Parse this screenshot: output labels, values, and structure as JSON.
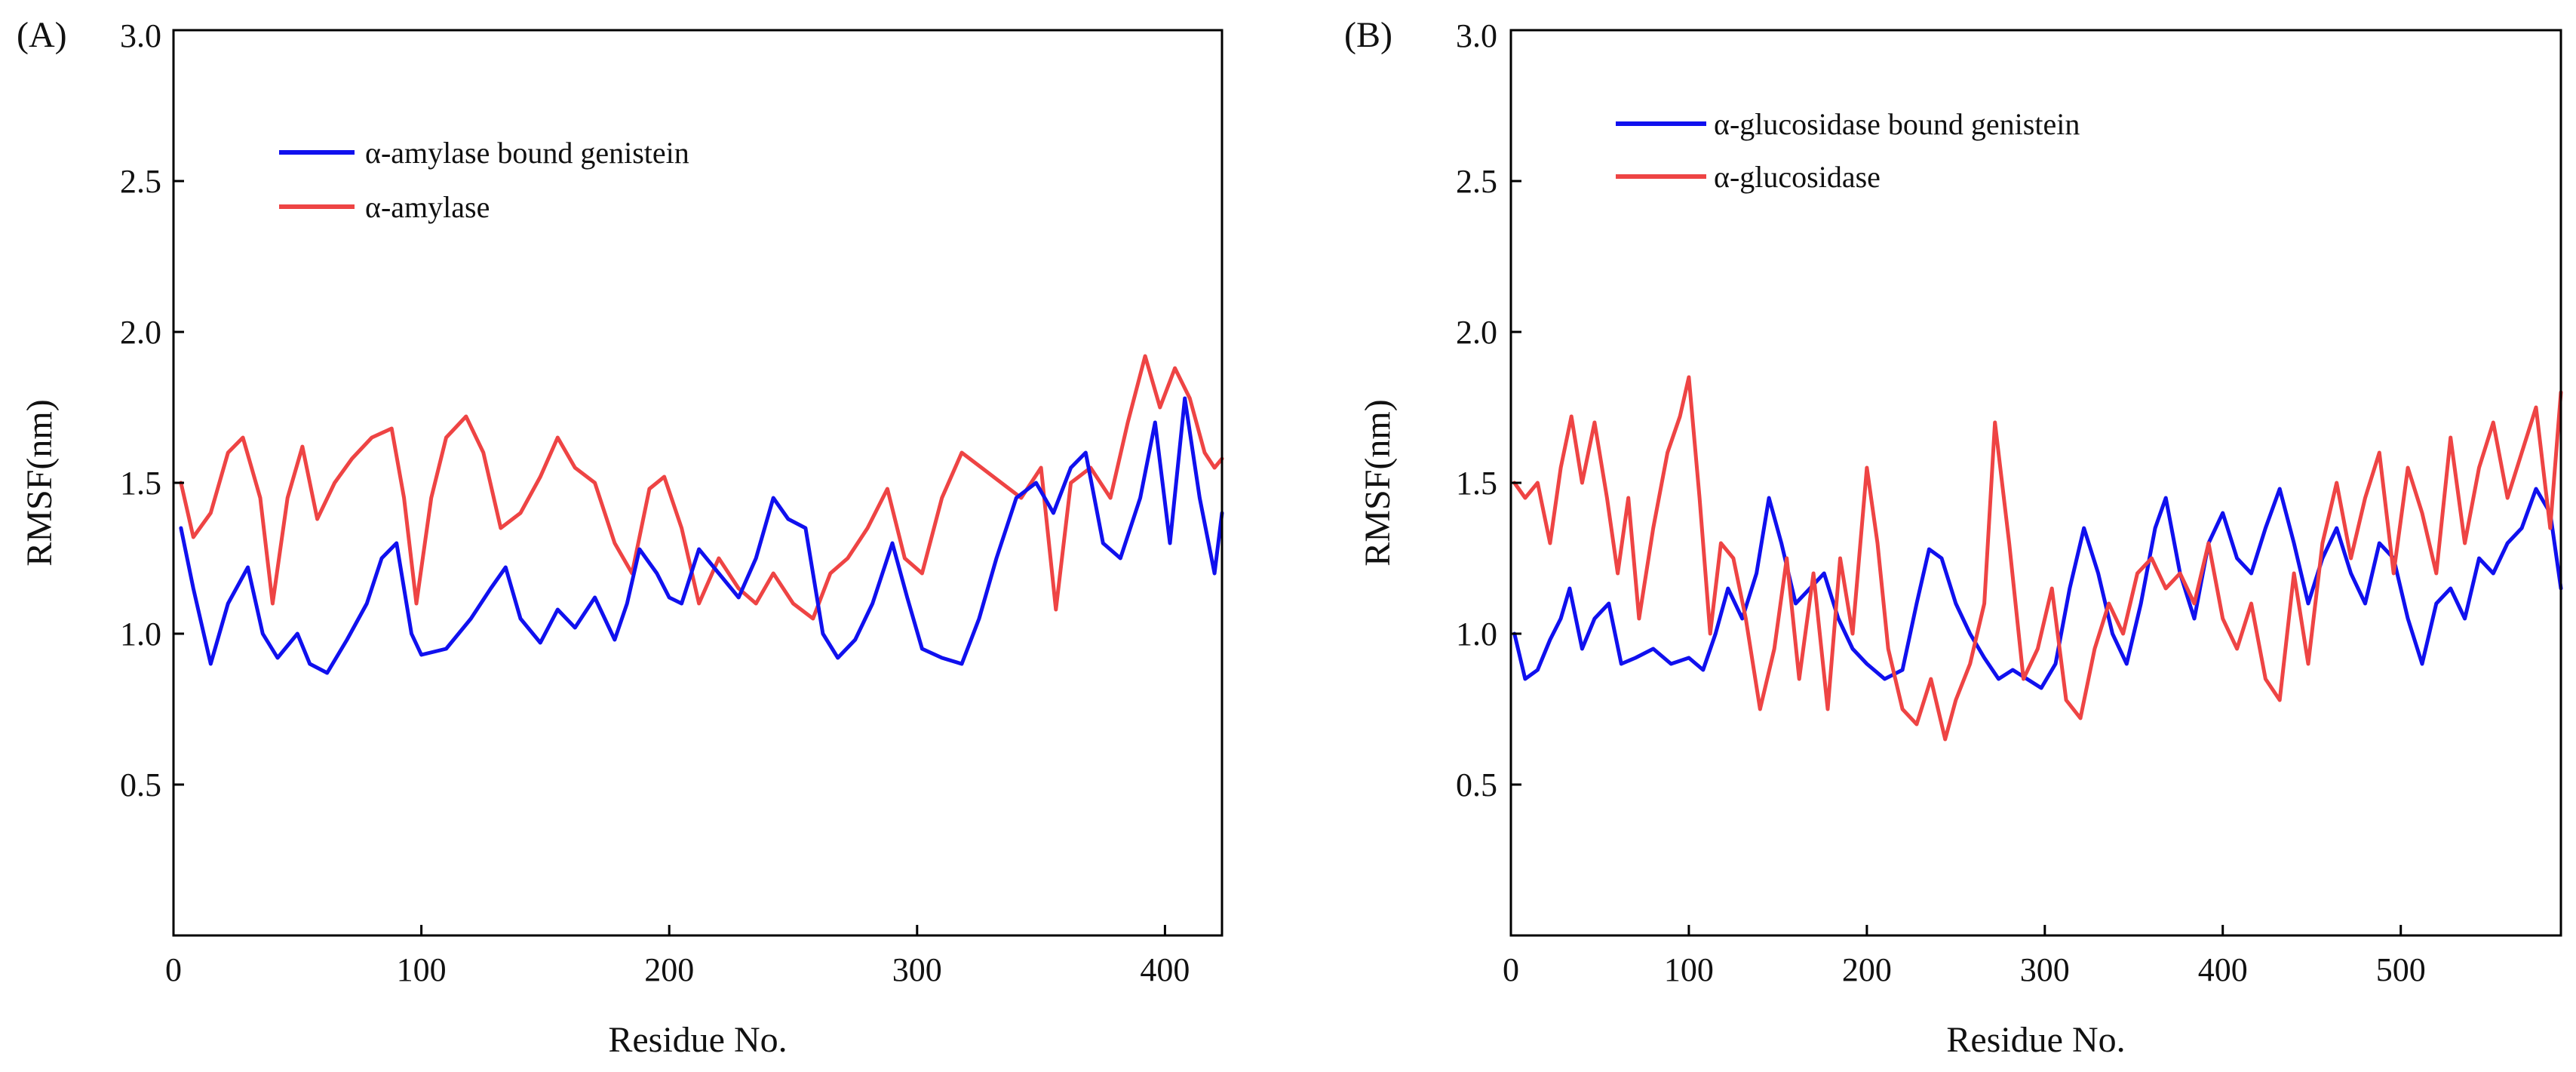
{
  "chart_data": [
    {
      "type": "line",
      "panel_label": "(A)",
      "title": "",
      "xlabel": "Residue No.",
      "ylabel": "RMSF(nm)",
      "xlim": [
        0,
        423
      ],
      "ylim": [
        0,
        3.0
      ],
      "x_ticks": [
        "0",
        "100",
        "200",
        "300",
        "400"
      ],
      "y_ticks": [
        "0.5",
        "1.0",
        "1.5",
        "2.0",
        "2.5",
        "3.0"
      ],
      "grid": false,
      "legend_position": "top-left",
      "series": [
        {
          "name": "α-amylase bound genistein",
          "color": "#1010ee",
          "x": [
            3,
            8,
            15,
            22,
            30,
            36,
            42,
            50,
            55,
            62,
            70,
            78,
            84,
            90,
            96,
            100,
            110,
            120,
            128,
            134,
            140,
            148,
            155,
            162,
            170,
            178,
            183,
            188,
            195,
            200,
            205,
            212,
            220,
            228,
            235,
            242,
            248,
            255,
            262,
            268,
            275,
            282,
            290,
            296,
            302,
            310,
            318,
            325,
            332,
            340,
            348,
            355,
            362,
            368,
            375,
            382,
            390,
            396,
            402,
            408,
            414,
            420,
            423
          ],
          "values": [
            1.35,
            1.15,
            0.9,
            1.1,
            1.22,
            1.0,
            0.92,
            1.0,
            0.9,
            0.87,
            0.98,
            1.1,
            1.25,
            1.3,
            1.0,
            0.93,
            0.95,
            1.05,
            1.15,
            1.22,
            1.05,
            0.97,
            1.08,
            1.02,
            1.12,
            0.98,
            1.1,
            1.28,
            1.2,
            1.12,
            1.1,
            1.28,
            1.2,
            1.12,
            1.25,
            1.45,
            1.38,
            1.35,
            1.0,
            0.92,
            0.98,
            1.1,
            1.3,
            1.12,
            0.95,
            0.92,
            0.9,
            1.05,
            1.25,
            1.45,
            1.5,
            1.4,
            1.55,
            1.6,
            1.3,
            1.25,
            1.45,
            1.7,
            1.3,
            1.78,
            1.45,
            1.2,
            1.4
          ]
        },
        {
          "name": "α-amylase",
          "color": "#ee4444",
          "x": [
            3,
            8,
            15,
            22,
            28,
            35,
            40,
            46,
            52,
            58,
            65,
            72,
            80,
            88,
            93,
            98,
            104,
            110,
            118,
            125,
            132,
            140,
            148,
            155,
            162,
            170,
            178,
            185,
            192,
            198,
            205,
            212,
            220,
            228,
            235,
            242,
            250,
            258,
            265,
            272,
            280,
            288,
            295,
            302,
            310,
            318,
            326,
            334,
            342,
            350,
            356,
            362,
            370,
            378,
            385,
            392,
            398,
            404,
            410,
            416,
            420,
            423
          ],
          "values": [
            1.5,
            1.32,
            1.4,
            1.6,
            1.65,
            1.45,
            1.1,
            1.45,
            1.62,
            1.38,
            1.5,
            1.58,
            1.65,
            1.68,
            1.45,
            1.1,
            1.45,
            1.65,
            1.72,
            1.6,
            1.35,
            1.4,
            1.52,
            1.65,
            1.55,
            1.5,
            1.3,
            1.2,
            1.48,
            1.52,
            1.35,
            1.1,
            1.25,
            1.15,
            1.1,
            1.2,
            1.1,
            1.05,
            1.2,
            1.25,
            1.35,
            1.48,
            1.25,
            1.2,
            1.45,
            1.6,
            1.55,
            1.5,
            1.45,
            1.55,
            1.08,
            1.5,
            1.55,
            1.45,
            1.7,
            1.92,
            1.75,
            1.88,
            1.78,
            1.6,
            1.55,
            1.58
          ]
        }
      ]
    },
    {
      "type": "line",
      "panel_label": "(B)",
      "title": "",
      "xlabel": "Residue No.",
      "ylabel": "RMSF(nm)",
      "xlim": [
        0,
        590
      ],
      "ylim": [
        0,
        3.0
      ],
      "x_ticks": [
        "0",
        "100",
        "200",
        "300",
        "400",
        "500"
      ],
      "y_ticks": [
        "0.5",
        "1.0",
        "1.5",
        "2.0",
        "2.5",
        "3.0"
      ],
      "grid": false,
      "legend_position": "top-left",
      "series": [
        {
          "name": "α-glucosidase bound genistein",
          "color": "#1010ee",
          "x": [
            2,
            8,
            15,
            22,
            28,
            33,
            40,
            47,
            55,
            62,
            70,
            80,
            90,
            100,
            108,
            115,
            122,
            130,
            138,
            145,
            152,
            160,
            168,
            176,
            184,
            192,
            200,
            210,
            220,
            228,
            235,
            242,
            250,
            258,
            266,
            274,
            282,
            290,
            298,
            306,
            314,
            322,
            330,
            338,
            346,
            354,
            362,
            368,
            376,
            384,
            392,
            400,
            408,
            416,
            424,
            432,
            440,
            448,
            456,
            464,
            472,
            480,
            488,
            496,
            504,
            512,
            520,
            528,
            536,
            544,
            552,
            560,
            568,
            576,
            584,
            590
          ],
          "values": [
            1.0,
            0.85,
            0.88,
            0.98,
            1.05,
            1.15,
            0.95,
            1.05,
            1.1,
            0.9,
            0.92,
            0.95,
            0.9,
            0.92,
            0.88,
            1.0,
            1.15,
            1.05,
            1.2,
            1.45,
            1.3,
            1.1,
            1.15,
            1.2,
            1.05,
            0.95,
            0.9,
            0.85,
            0.88,
            1.1,
            1.28,
            1.25,
            1.1,
            1.0,
            0.92,
            0.85,
            0.88,
            0.85,
            0.82,
            0.9,
            1.15,
            1.35,
            1.2,
            1.0,
            0.9,
            1.1,
            1.35,
            1.45,
            1.2,
            1.05,
            1.3,
            1.4,
            1.25,
            1.2,
            1.35,
            1.48,
            1.3,
            1.1,
            1.25,
            1.35,
            1.2,
            1.1,
            1.3,
            1.25,
            1.05,
            0.9,
            1.1,
            1.15,
            1.05,
            1.25,
            1.2,
            1.3,
            1.35,
            1.48,
            1.4,
            1.15
          ]
        },
        {
          "name": "α-glucosidase",
          "color": "#ee4444",
          "x": [
            2,
            8,
            15,
            22,
            28,
            34,
            40,
            47,
            54,
            60,
            66,
            72,
            80,
            88,
            95,
            100,
            106,
            112,
            118,
            125,
            132,
            140,
            148,
            155,
            162,
            170,
            178,
            185,
            192,
            200,
            206,
            212,
            220,
            228,
            236,
            244,
            250,
            258,
            266,
            272,
            280,
            288,
            296,
            304,
            312,
            320,
            328,
            336,
            344,
            352,
            360,
            368,
            376,
            384,
            392,
            400,
            408,
            416,
            424,
            432,
            440,
            448,
            456,
            464,
            472,
            480,
            488,
            496,
            504,
            512,
            520,
            528,
            536,
            544,
            552,
            560,
            568,
            576,
            584,
            590
          ],
          "values": [
            1.5,
            1.45,
            1.5,
            1.3,
            1.55,
            1.72,
            1.5,
            1.7,
            1.45,
            1.2,
            1.45,
            1.05,
            1.35,
            1.6,
            1.72,
            1.85,
            1.45,
            1.0,
            1.3,
            1.25,
            1.05,
            0.75,
            0.95,
            1.25,
            0.85,
            1.2,
            0.75,
            1.25,
            1.0,
            1.55,
            1.3,
            0.95,
            0.75,
            0.7,
            0.85,
            0.65,
            0.78,
            0.9,
            1.1,
            1.7,
            1.3,
            0.85,
            0.95,
            1.15,
            0.78,
            0.72,
            0.95,
            1.1,
            1.0,
            1.2,
            1.25,
            1.15,
            1.2,
            1.1,
            1.3,
            1.05,
            0.95,
            1.1,
            0.85,
            0.78,
            1.2,
            0.9,
            1.3,
            1.5,
            1.25,
            1.45,
            1.6,
            1.2,
            1.55,
            1.4,
            1.2,
            1.65,
            1.3,
            1.55,
            1.7,
            1.45,
            1.6,
            1.75,
            1.35,
            1.8
          ]
        }
      ]
    }
  ]
}
